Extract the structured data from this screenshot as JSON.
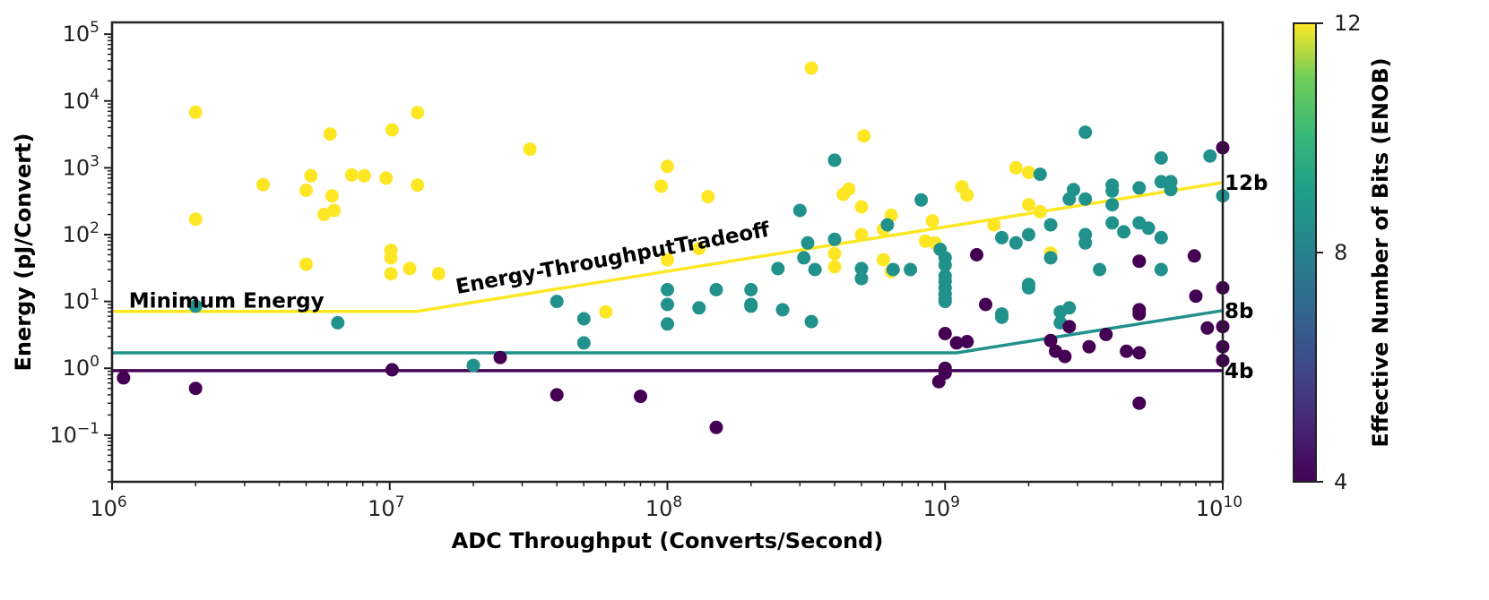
{
  "chart_data": {
    "type": "scatter",
    "xlabel": "ADC Throughput (Converts/Second)",
    "ylabel": "Energy (pJ/Convert)",
    "x_scale": "log",
    "y_scale": "log",
    "xlim": [
      1000000,
      10000000000
    ],
    "ylim": [
      0.02,
      150000
    ],
    "x_ticks": [
      {
        "value": 1000000,
        "base": "10",
        "exp": "6"
      },
      {
        "value": 10000000,
        "base": "10",
        "exp": "7"
      },
      {
        "value": 100000000,
        "base": "10",
        "exp": "8"
      },
      {
        "value": 1000000000,
        "base": "10",
        "exp": "9"
      },
      {
        "value": 10000000000,
        "base": "10",
        "exp": "10"
      }
    ],
    "y_ticks": [
      {
        "value": 0.1,
        "base": "10",
        "exp": "−1"
      },
      {
        "value": 1,
        "base": "10",
        "exp": "0"
      },
      {
        "value": 10,
        "base": "10",
        "exp": "1"
      },
      {
        "value": 100,
        "base": "10",
        "exp": "2"
      },
      {
        "value": 1000,
        "base": "10",
        "exp": "3"
      },
      {
        "value": 10000,
        "base": "10",
        "exp": "4"
      },
      {
        "value": 100000,
        "base": "10",
        "exp": "5"
      }
    ],
    "colorbar": {
      "label": "Effective Number of Bits (ENOB)",
      "range": [
        4,
        12
      ],
      "ticks": [
        "4",
        "8",
        "12"
      ],
      "colormap": "viridis"
    },
    "colors": {
      "enob4": "#440154",
      "enob8": "#21918c",
      "enob12": "#fde725"
    },
    "lines": [
      {
        "enob": 4,
        "points": [
          [
            1000000,
            0.92
          ],
          [
            10000000000,
            0.92
          ]
        ],
        "label": "4b"
      },
      {
        "enob": 8,
        "points": [
          [
            1000000,
            1.7
          ],
          [
            1100000000,
            1.7
          ],
          [
            10000000000,
            7.3
          ]
        ],
        "label": "8b"
      },
      {
        "enob": 12,
        "points": [
          [
            1000000,
            7.1
          ],
          [
            12500000,
            7.1
          ],
          [
            10000000000,
            600
          ]
        ],
        "label": "12b"
      }
    ],
    "annotations": [
      {
        "text": "Minimum Energy",
        "x": 1150000,
        "y": 8.1,
        "rotate": false
      },
      {
        "text": "Energy-ThroughputTradeoff",
        "x": 17500000,
        "y": 13,
        "rotate": true
      }
    ],
    "series": [
      {
        "enob": 12,
        "points": [
          [
            2000000,
            6800
          ],
          [
            2000000,
            170
          ],
          [
            3500000,
            560
          ],
          [
            5000000,
            460
          ],
          [
            5000000,
            36
          ],
          [
            5200000,
            760
          ],
          [
            5800000,
            200
          ],
          [
            6100000,
            3200
          ],
          [
            6200000,
            380
          ],
          [
            6300000,
            230
          ],
          [
            7300000,
            780
          ],
          [
            8100000,
            760
          ],
          [
            9700000,
            700
          ],
          [
            10200000,
            3700
          ],
          [
            10100000,
            58
          ],
          [
            10100000,
            45
          ],
          [
            10100000,
            26
          ],
          [
            12600000,
            6700
          ],
          [
            12600000,
            550
          ],
          [
            11800000,
            31
          ],
          [
            15000000,
            26
          ],
          [
            32000000,
            1900
          ],
          [
            60000000,
            7
          ],
          [
            95000000,
            530
          ],
          [
            100000000,
            1050
          ],
          [
            100000000,
            42
          ],
          [
            140000000,
            370
          ],
          [
            130000000,
            62
          ],
          [
            400000000,
            52
          ],
          [
            400000000,
            33
          ],
          [
            330000000,
            31000
          ],
          [
            430000000,
            400
          ],
          [
            450000000,
            480
          ],
          [
            500000000,
            260
          ],
          [
            510000000,
            3000
          ],
          [
            500000000,
            100
          ],
          [
            600000000,
            120
          ],
          [
            600000000,
            42
          ],
          [
            640000000,
            195
          ],
          [
            640000000,
            28
          ],
          [
            850000000,
            80
          ],
          [
            900000000,
            160
          ],
          [
            920000000,
            75
          ],
          [
            1150000000,
            520
          ],
          [
            1200000000,
            390
          ],
          [
            1500000000,
            140
          ],
          [
            1800000000,
            1000
          ],
          [
            2000000000,
            850
          ],
          [
            2000000000,
            280
          ],
          [
            2200000000,
            220
          ],
          [
            2400000000,
            53
          ]
        ]
      },
      {
        "enob": 8,
        "points": [
          [
            2000000,
            8.5
          ],
          [
            6500000,
            4.8
          ],
          [
            20000000,
            1.1
          ],
          [
            40000000,
            10
          ],
          [
            50000000,
            5.5
          ],
          [
            50000000,
            2.4
          ],
          [
            100000000,
            15
          ],
          [
            100000000,
            9
          ],
          [
            100000000,
            4.6
          ],
          [
            130000000,
            8
          ],
          [
            150000000,
            15
          ],
          [
            200000000,
            15
          ],
          [
            200000000,
            9
          ],
          [
            200000000,
            8.5
          ],
          [
            250000000,
            31
          ],
          [
            260000000,
            7.5
          ],
          [
            300000000,
            230
          ],
          [
            310000000,
            45
          ],
          [
            320000000,
            75
          ],
          [
            340000000,
            30
          ],
          [
            330000000,
            5
          ],
          [
            400000000,
            1300
          ],
          [
            400000000,
            85
          ],
          [
            500000000,
            31
          ],
          [
            500000000,
            22
          ],
          [
            620000000,
            140
          ],
          [
            650000000,
            30
          ],
          [
            750000000,
            30
          ],
          [
            820000000,
            330
          ],
          [
            960000000,
            60
          ],
          [
            1000000000,
            45
          ],
          [
            1000000000,
            35
          ],
          [
            1000000000,
            24
          ],
          [
            1000000000,
            20
          ],
          [
            1000000000,
            16
          ],
          [
            1000000000,
            13
          ],
          [
            1000000000,
            11
          ],
          [
            1000000000,
            10
          ],
          [
            1600000000,
            90
          ],
          [
            1600000000,
            6.5
          ],
          [
            1600000000,
            5.8
          ],
          [
            1800000000,
            75
          ],
          [
            2000000000,
            100
          ],
          [
            2000000000,
            18
          ],
          [
            2000000000,
            16
          ],
          [
            2200000000,
            800
          ],
          [
            2400000000,
            140
          ],
          [
            2400000000,
            45
          ],
          [
            2600000000,
            7
          ],
          [
            2600000000,
            4.8
          ],
          [
            2800000000,
            8
          ],
          [
            2800000000,
            340
          ],
          [
            2900000000,
            470
          ],
          [
            3200000000,
            3400
          ],
          [
            3200000000,
            340
          ],
          [
            3200000000,
            100
          ],
          [
            3200000000,
            75
          ],
          [
            3600000000,
            30
          ],
          [
            4000000000,
            550
          ],
          [
            4000000000,
            450
          ],
          [
            4000000000,
            280
          ],
          [
            4000000000,
            150
          ],
          [
            4400000000,
            110
          ],
          [
            5000000000,
            500
          ],
          [
            5000000000,
            150
          ],
          [
            5000000000,
            40
          ],
          [
            5400000000,
            125
          ],
          [
            6000000000,
            1400
          ],
          [
            6000000000,
            620
          ],
          [
            6000000000,
            90
          ],
          [
            6000000000,
            30
          ],
          [
            6500000000,
            620
          ],
          [
            6500000000,
            470
          ],
          [
            9000000000,
            1500
          ],
          [
            10000000000,
            380
          ]
        ]
      },
      {
        "enob": 4,
        "points": [
          [
            1100000,
            0.72
          ],
          [
            2000000,
            0.5
          ],
          [
            10200000,
            0.95
          ],
          [
            25000000,
            1.45
          ],
          [
            40000000,
            0.4
          ],
          [
            80000000,
            0.38
          ],
          [
            150000000,
            0.13
          ],
          [
            950000000,
            0.63
          ],
          [
            1000000000,
            3.3
          ],
          [
            1000000000,
            1.0
          ],
          [
            1000000000,
            0.85
          ],
          [
            1100000000,
            2.4
          ],
          [
            1200000000,
            2.5
          ],
          [
            1300000000,
            50
          ],
          [
            1400000000,
            9
          ],
          [
            2400000000,
            2.6
          ],
          [
            2500000000,
            1.8
          ],
          [
            2700000000,
            1.5
          ],
          [
            2800000000,
            4.2
          ],
          [
            3300000000,
            2.1
          ],
          [
            3800000000,
            3.2
          ],
          [
            4500000000,
            1.8
          ],
          [
            5000000000,
            1.7
          ],
          [
            5000000000,
            40
          ],
          [
            5000000000,
            7.5
          ],
          [
            5000000000,
            6.5
          ],
          [
            5000000000,
            0.3
          ],
          [
            7900000000,
            48
          ],
          [
            8000000000,
            12
          ],
          [
            8800000000,
            4
          ],
          [
            10000000000,
            2000
          ],
          [
            10000000000,
            16
          ],
          [
            10000000000,
            4.2
          ],
          [
            10000000000,
            2.1
          ],
          [
            10000000000,
            1.3
          ]
        ]
      }
    ]
  }
}
